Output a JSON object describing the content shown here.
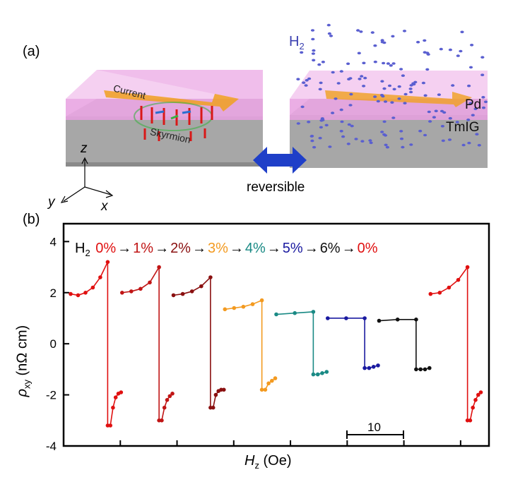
{
  "panel_a": {
    "label": "(a)",
    "gas_label": "H",
    "gas_sub": "2",
    "current_label": "Current",
    "skyrmion_label": "Skyrmion",
    "pd_label": "Pd",
    "tmig_label": "TmIG",
    "reversible_label": "reversible",
    "axis_z": "z",
    "axis_y": "y",
    "axis_x": "x",
    "colors": {
      "pd_layer": "#e89ae0",
      "tmig_layer": "#9b9b9b",
      "current_arrow": "#f0a020",
      "hydrogen": "#5a5fd0",
      "double_arrow": "#1f3fc8"
    }
  },
  "panel_b": {
    "label": "(b)",
    "sequence_gas": "H",
    "sequence_gas_sub": "2",
    "sequence": [
      {
        "text": "0%",
        "color": "#e01010"
      },
      {
        "text": "1%",
        "color": "#c01515"
      },
      {
        "text": "2%",
        "color": "#8a1010"
      },
      {
        "text": "3%",
        "color": "#f39a20"
      },
      {
        "text": "4%",
        "color": "#1a8a85"
      },
      {
        "text": "5%",
        "color": "#1a1aa0"
      },
      {
        "text": "6%",
        "color": "#111111"
      },
      {
        "text": "0%",
        "color": "#e01010"
      }
    ],
    "arrow_glyph": "→",
    "scale_bar_label": "10"
  },
  "chart_data": {
    "type": "line",
    "xlabel": "H",
    "xlabel_sub": "z",
    "xlabel_unit": " (Oe)",
    "ylabel_sym": "ρ",
    "ylabel_sub": "xy",
    "ylabel_unit": " (nΩ cm)",
    "ylim": [
      -4,
      4.7
    ],
    "yticks": [
      4,
      2,
      0,
      -2,
      -4
    ],
    "ytick_labels": [
      "4",
      "2",
      "0",
      "-2",
      "-4"
    ],
    "x_tick_count": 7,
    "grid": false,
    "legend": "none",
    "series": [
      {
        "color": "#e01010",
        "pos": [
          1.95,
          1.9,
          2.0,
          2.2,
          2.6,
          3.2
        ],
        "neg": [
          -1.9,
          -1.95,
          -2.1,
          -2.5,
          -3.2
        ]
      },
      {
        "color": "#c01515",
        "pos": [
          2.0,
          2.05,
          2.15,
          2.4,
          3.0
        ],
        "neg": [
          -1.95,
          -2.05,
          -2.2,
          -2.5,
          -3.0
        ]
      },
      {
        "color": "#8a1010",
        "pos": [
          1.9,
          1.95,
          2.05,
          2.25,
          2.6
        ],
        "neg": [
          -1.8,
          -1.8,
          -1.85,
          -2.0,
          -2.5
        ]
      },
      {
        "color": "#f39a20",
        "pos": [
          1.35,
          1.4,
          1.45,
          1.55,
          1.7
        ],
        "neg": [
          -1.35,
          -1.45,
          -1.55,
          -1.8
        ]
      },
      {
        "color": "#1a8a85",
        "pos": [
          1.15,
          1.2,
          1.25
        ],
        "neg": [
          -1.1,
          -1.15,
          -1.2
        ]
      },
      {
        "color": "#1a1aa0",
        "pos": [
          1.0,
          1.0,
          1.0
        ],
        "neg": [
          -0.85,
          -0.9,
          -0.95
        ]
      },
      {
        "color": "#111111",
        "pos": [
          0.9,
          0.95,
          0.95
        ],
        "neg": [
          -0.95,
          -1.0,
          -1.0
        ]
      },
      {
        "color": "#e01010",
        "pos": [
          1.95,
          2.0,
          2.2,
          2.5,
          3.0
        ],
        "neg": [
          -1.9,
          -2.0,
          -2.2,
          -2.5,
          -3.0
        ]
      }
    ]
  }
}
